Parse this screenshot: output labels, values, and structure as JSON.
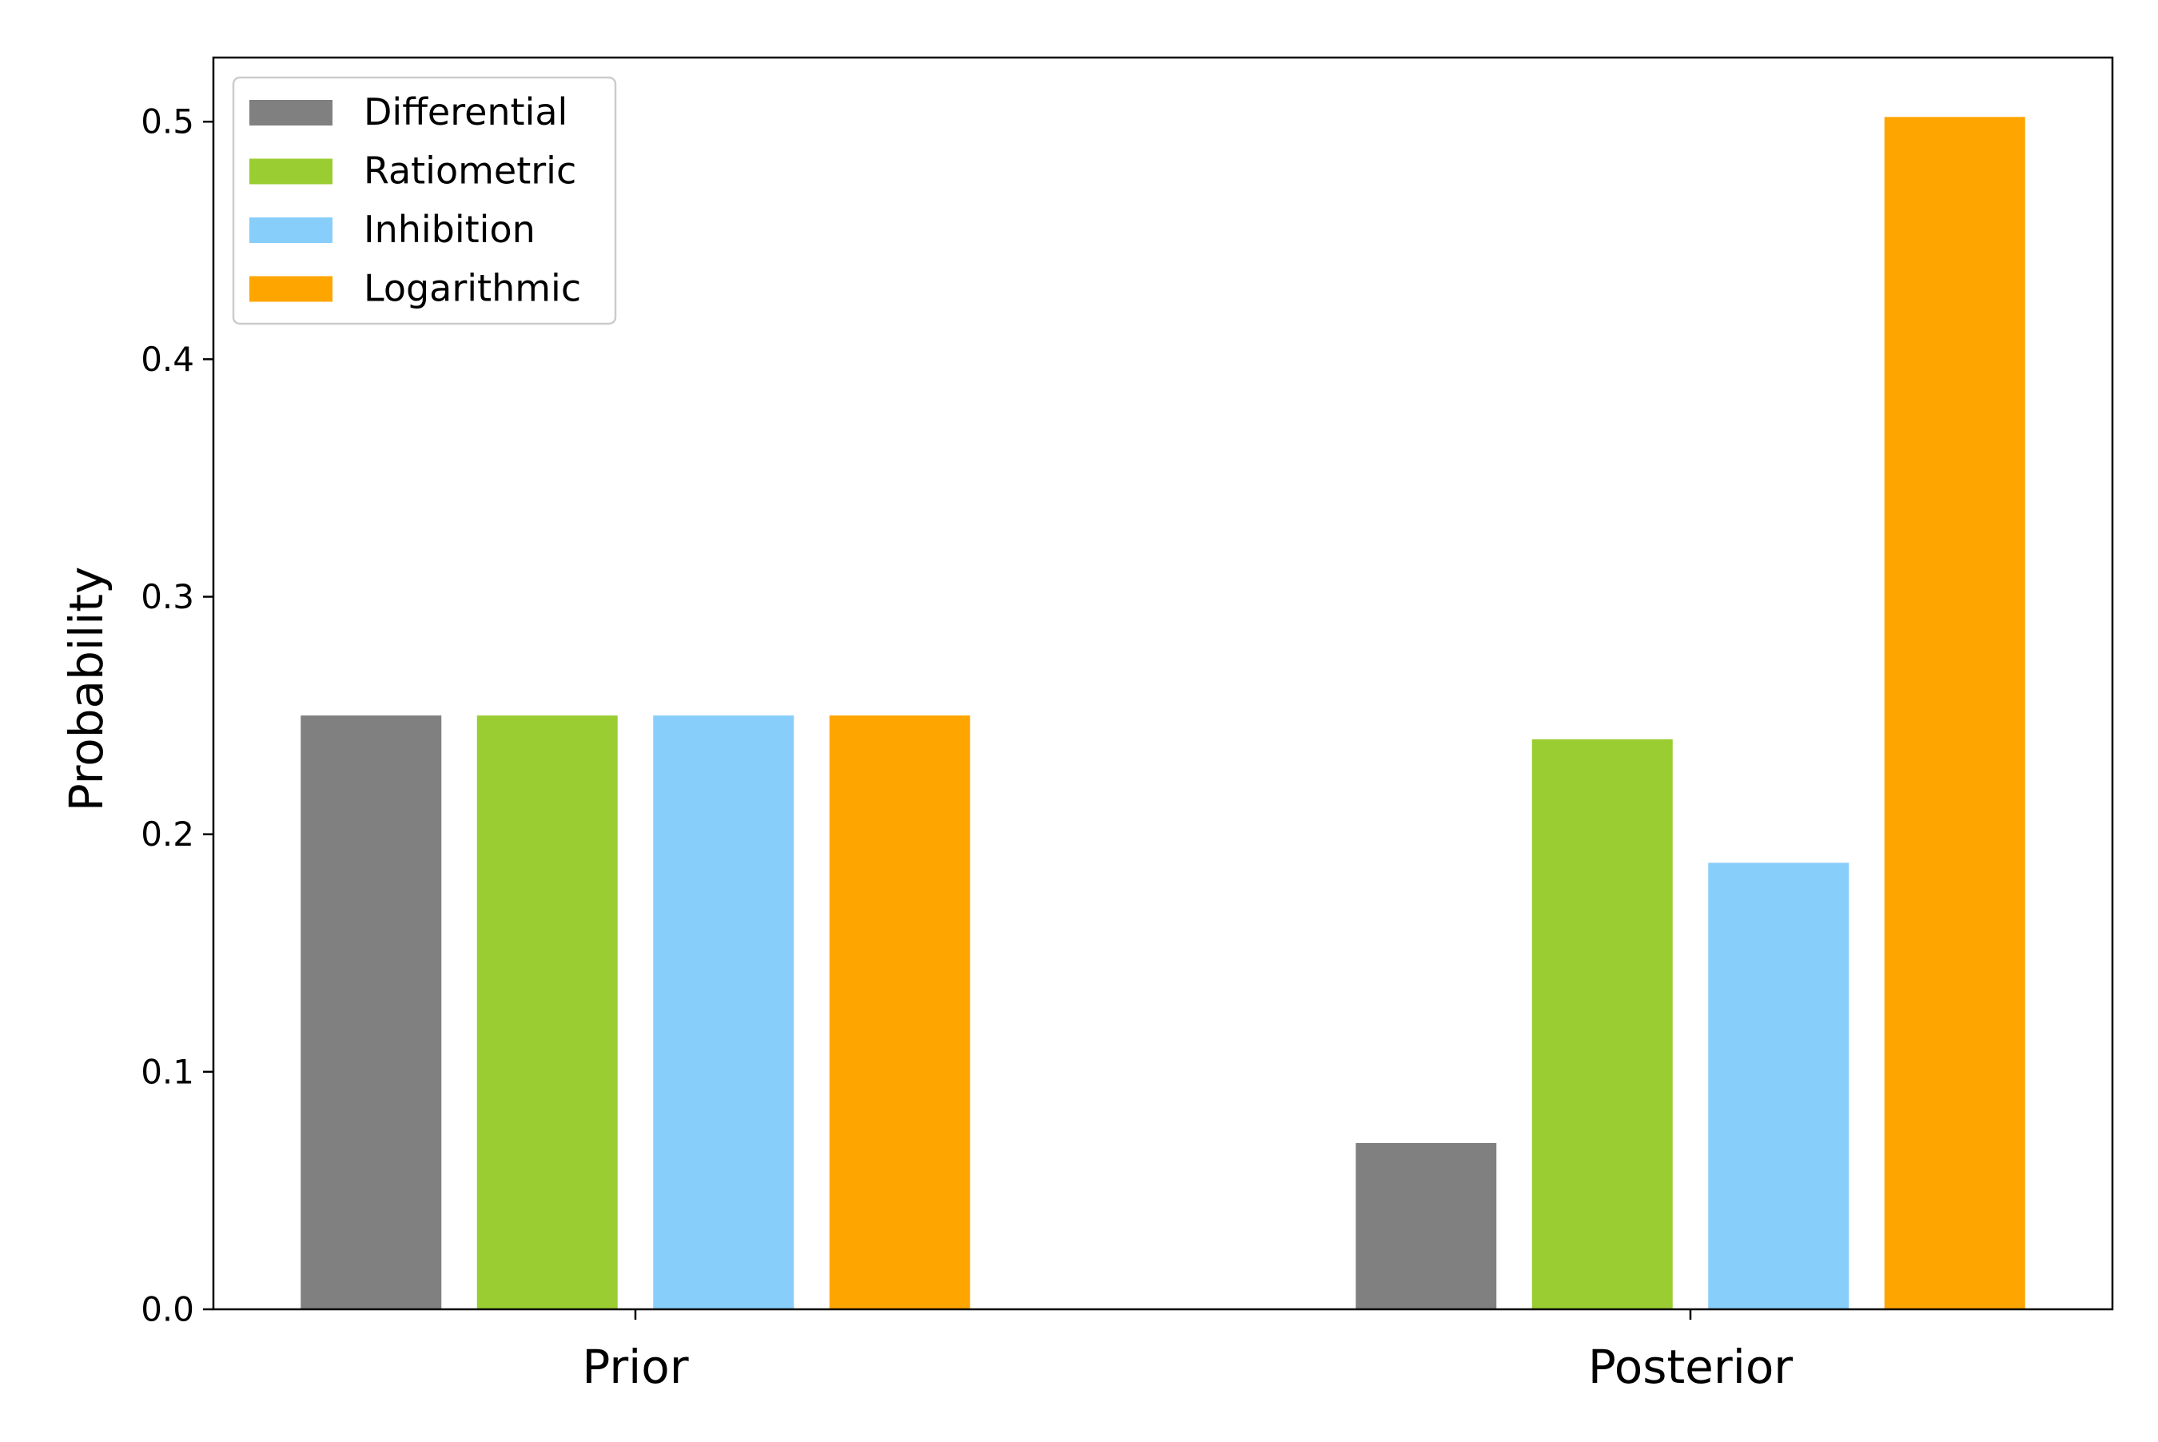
{
  "chart_data": {
    "type": "bar",
    "categories": [
      "Prior",
      "Posterior"
    ],
    "series": [
      {
        "name": "Differential",
        "color": "#808080",
        "values": [
          0.25,
          0.07
        ]
      },
      {
        "name": "Ratiometric",
        "color": "#9ACD32",
        "values": [
          0.25,
          0.24
        ]
      },
      {
        "name": "Inhibition",
        "color": "#87CEFA",
        "values": [
          0.25,
          0.188
        ]
      },
      {
        "name": "Logarithmic",
        "color": "#FFA500",
        "values": [
          0.25,
          0.502
        ]
      }
    ],
    "title": "",
    "xlabel": "",
    "ylabel": "Probability",
    "ylim": [
      0,
      0.527
    ],
    "yticks": [
      0.0,
      0.1,
      0.2,
      0.3,
      0.4,
      0.5
    ],
    "ytick_labels": [
      "0.0",
      "0.1",
      "0.2",
      "0.3",
      "0.4",
      "0.5"
    ],
    "grid": false,
    "legend_position": "top-left"
  }
}
